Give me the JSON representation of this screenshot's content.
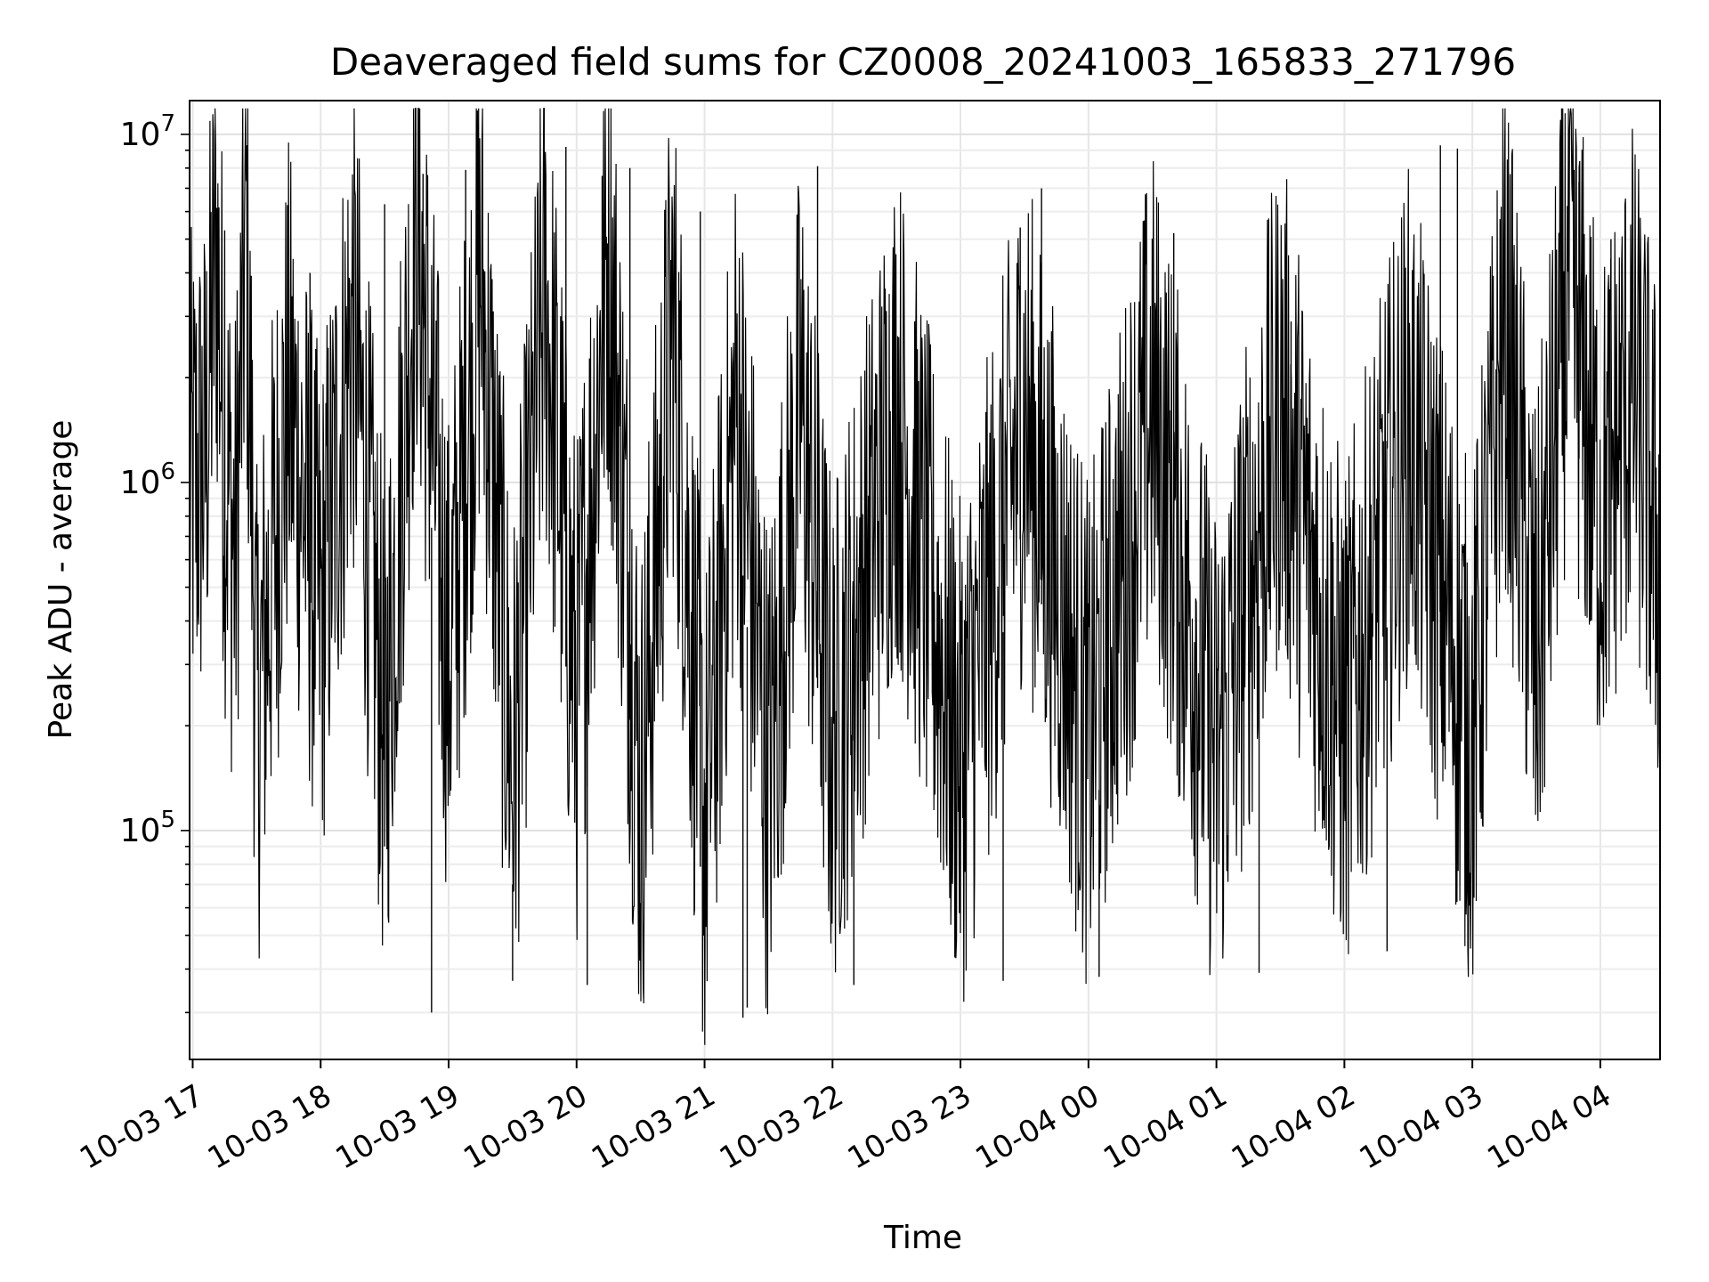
{
  "chart_data": {
    "type": "line",
    "title": "Deaveraged field sums for CZ0008_20241003_165833_271796",
    "xlabel": "Time",
    "ylabel": "Peak ADU - average",
    "y_scale": "log",
    "ylim": [
      22000,
      12500000
    ],
    "xlim": [
      "2024-10-03 16:58:33",
      "2024-10-04 04:28:00"
    ],
    "x_ticks": [
      {
        "t": "2024-10-03 17:00",
        "label": "10-03 17"
      },
      {
        "t": "2024-10-03 18:00",
        "label": "10-03 18"
      },
      {
        "t": "2024-10-03 19:00",
        "label": "10-03 19"
      },
      {
        "t": "2024-10-03 20:00",
        "label": "10-03 20"
      },
      {
        "t": "2024-10-03 21:00",
        "label": "10-03 21"
      },
      {
        "t": "2024-10-03 22:00",
        "label": "10-03 22"
      },
      {
        "t": "2024-10-03 23:00",
        "label": "10-03 23"
      },
      {
        "t": "2024-10-04 00:00",
        "label": "10-04 00"
      },
      {
        "t": "2024-10-04 01:00",
        "label": "10-04 01"
      },
      {
        "t": "2024-10-04 02:00",
        "label": "10-04 02"
      },
      {
        "t": "2024-10-04 03:00",
        "label": "10-04 03"
      },
      {
        "t": "2024-10-04 04:00",
        "label": "10-04 04"
      }
    ],
    "y_ticks": [
      {
        "value": 100000,
        "base": "10",
        "exp": "5"
      },
      {
        "value": 1000000,
        "base": "10",
        "exp": "6"
      },
      {
        "value": 10000000,
        "base": "10",
        "exp": "7"
      }
    ],
    "grid": true,
    "legend": "none",
    "series": [
      {
        "color": "#000000",
        "points": [
          [
            "2024-10-03 16:58:33",
            480000
          ],
          [
            "2024-10-03 17:06:00",
            580000
          ],
          [
            "2024-10-03 17:11:00",
            2500000
          ],
          [
            "2024-10-03 17:15:00",
            600000
          ],
          [
            "2024-10-03 17:20:00",
            300000
          ],
          [
            "2024-10-03 17:25:00",
            3000000
          ],
          [
            "2024-10-03 17:30:00",
            100000
          ],
          [
            "2024-10-03 17:45:00",
            900000
          ],
          [
            "2024-10-03 18:00:00",
            200000
          ],
          [
            "2024-10-03 18:15:00",
            1500000
          ],
          [
            "2024-10-03 18:30:00",
            90000
          ],
          [
            "2024-10-03 18:45:00",
            3000000
          ],
          [
            "2024-10-03 19:00:00",
            150000
          ],
          [
            "2024-10-03 19:15:00",
            2000000
          ],
          [
            "2024-10-03 19:30:00",
            70000
          ],
          [
            "2024-10-03 19:45:00",
            1800000
          ],
          [
            "2024-10-03 20:00:00",
            120000
          ],
          [
            "2024-10-03 20:15:00",
            2500000
          ],
          [
            "2024-10-03 20:30:00",
            60000
          ],
          [
            "2024-10-03 20:45:00",
            1500000
          ],
          [
            "2024-10-03 21:00:00",
            50000
          ],
          [
            "2024-10-03 21:15:00",
            900000
          ],
          [
            "2024-10-03 21:30:00",
            70000
          ],
          [
            "2024-10-03 21:45:00",
            850000
          ],
          [
            "2024-10-03 22:00:00",
            90000
          ],
          [
            "2024-10-03 22:30:00",
            850000
          ],
          [
            "2024-10-03 23:00:00",
            80000
          ],
          [
            "2024-10-03 23:30:00",
            800000
          ],
          [
            "2024-10-04 00:00:00",
            90000
          ],
          [
            "2024-10-04 00:30:00",
            850000
          ],
          [
            "2024-10-04 01:00:00",
            80000
          ],
          [
            "2024-10-04 01:30:00",
            850000
          ],
          [
            "2024-10-04 02:00:00",
            100000
          ],
          [
            "2024-10-04 02:30:00",
            750000
          ],
          [
            "2024-10-04 03:00:00",
            90000
          ],
          [
            "2024-10-04 03:15:00",
            1500000
          ],
          [
            "2024-10-04 03:30:00",
            150000
          ],
          [
            "2024-10-04 03:45:00",
            2000000
          ],
          [
            "2024-10-04 04:00:00",
            400000
          ],
          [
            "2024-10-04 04:15:00",
            1000000
          ],
          [
            "2024-10-04 04:28:00",
            300000
          ]
        ]
      }
    ],
    "spikes": [
      [
        "2024-10-03 17:15:00",
        5300000
      ],
      [
        "2024-10-03 17:55:00",
        4000000
      ],
      [
        "2024-10-03 18:30:00",
        6300000
      ],
      [
        "2024-10-03 18:48:00",
        7700000
      ],
      [
        "2024-10-03 19:08:00",
        7900000
      ],
      [
        "2024-10-03 19:55:00",
        9200000
      ],
      [
        "2024-10-03 20:12:00",
        7600000
      ],
      [
        "2024-10-03 20:25:00",
        8000000
      ],
      [
        "2024-10-03 20:58:00",
        6000000
      ],
      [
        "2024-10-03 21:53:00",
        8100000
      ],
      [
        "2024-10-03 23:28:00",
        5400000
      ],
      [
        "2024-10-03 23:38:00",
        7000000
      ],
      [
        "2024-10-04 00:40:00",
        5200000
      ],
      [
        "2024-10-04 01:35:00",
        2900000
      ],
      [
        "2024-10-04 02:45:00",
        9300000
      ],
      [
        "2024-10-04 02:53:00",
        9100000
      ],
      [
        "2024-10-04 03:50:00",
        7300000
      ],
      [
        "2024-10-04 04:05:00",
        5000000
      ]
    ],
    "dips": [
      [
        "2024-10-03 18:52:00",
        30000
      ],
      [
        "2024-10-03 19:30:00",
        37000
      ],
      [
        "2024-10-03 20:05:00",
        36000
      ],
      [
        "2024-10-03 21:18:00",
        29000
      ],
      [
        "2024-10-03 21:20:00",
        31000
      ],
      [
        "2024-10-03 22:10:00",
        36000
      ],
      [
        "2024-10-03 23:20:00",
        37000
      ],
      [
        "2024-10-04 00:05:00",
        38000
      ],
      [
        "2024-10-04 01:20:00",
        39000
      ],
      [
        "2024-10-04 02:20:00",
        45000
      ]
    ]
  }
}
